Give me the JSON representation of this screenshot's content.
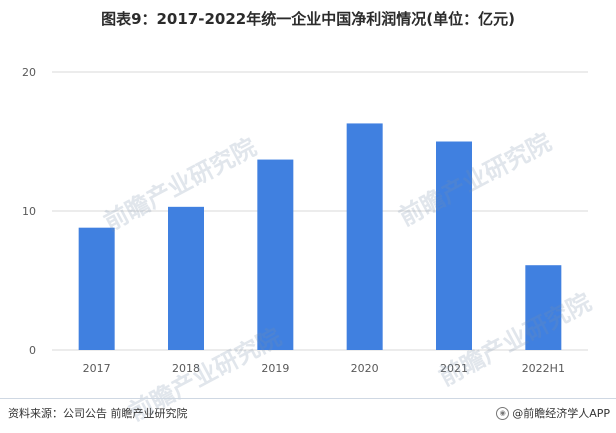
{
  "title": "图表9：2017-2022年统一企业中国净利润情况(单位：亿元)",
  "footer": {
    "source": "资料来源：公司公告 前瞻产业研究院",
    "brand": "@前瞻经济学人APP",
    "brand_icon": "weibo-icon"
  },
  "watermark": "前瞻产业研究院",
  "colors": {
    "bar": "#4080e0",
    "grid": "#d9d9d9",
    "axis_text": "#595959"
  },
  "chart_data": {
    "type": "bar",
    "categories": [
      "2017",
      "2018",
      "2019",
      "2020",
      "2021",
      "2022H1"
    ],
    "values": [
      8.8,
      10.3,
      13.7,
      16.3,
      15.0,
      6.1
    ],
    "ylim": [
      0,
      20
    ],
    "yticks": [
      0,
      10,
      20
    ],
    "grid": true,
    "legend": "none",
    "xlabel": "",
    "ylabel": ""
  }
}
